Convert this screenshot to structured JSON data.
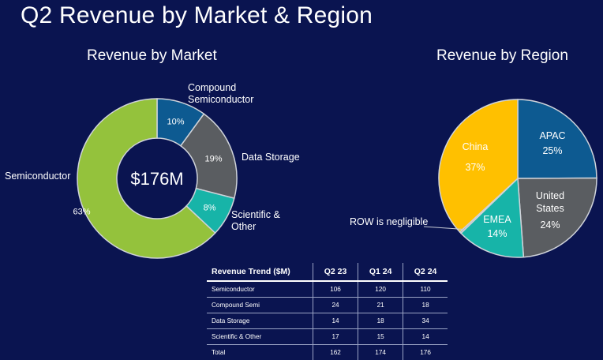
{
  "page": {
    "title": "Q2 Revenue by Market & Region"
  },
  "chart_data": [
    {
      "type": "donut",
      "title": "Revenue by Market",
      "center_label": "$176M",
      "slices": [
        {
          "label": "Compound Semiconductor",
          "pct_label": "10%",
          "value": 10,
          "color": "#0d5a91"
        },
        {
          "label": "Data Storage",
          "pct_label": "19%",
          "value": 19,
          "color": "#5a5d61"
        },
        {
          "label": "Scientific & Other",
          "pct_label": "8%",
          "value": 8,
          "color": "#17b4a8"
        },
        {
          "label": "Semiconductor",
          "pct_label": "63%",
          "value": 63,
          "color": "#94c23c"
        }
      ]
    },
    {
      "type": "pie",
      "title": "Revenue by Region",
      "slices": [
        {
          "label": "APAC",
          "pct_label": "25%",
          "value": 25,
          "color": "#0d5a91"
        },
        {
          "label": "United States",
          "pct_label": "24%",
          "value": 24,
          "color": "#5a5d61"
        },
        {
          "label": "EMEA",
          "pct_label": "14%",
          "value": 14,
          "color": "#17b4a8"
        },
        {
          "label": "ROW",
          "pct_label": "",
          "value": 0.35,
          "color": "#9aa0a8"
        },
        {
          "label": "China",
          "pct_label": "37%",
          "value": 37,
          "color": "#ffc000"
        }
      ],
      "annotation": "ROW is negligible"
    },
    {
      "type": "table",
      "columns": [
        "Revenue Trend ($M)",
        "Q2 23",
        "Q1 24",
        "Q2 24"
      ],
      "rows": [
        [
          "Semiconductor",
          "106",
          "120",
          "110"
        ],
        [
          "Compound Semi",
          "24",
          "21",
          "18"
        ],
        [
          "Data Storage",
          "14",
          "18",
          "34"
        ],
        [
          "Scientific & Other",
          "17",
          "15",
          "14"
        ],
        [
          "Total",
          "162",
          "174",
          "176"
        ]
      ]
    }
  ]
}
